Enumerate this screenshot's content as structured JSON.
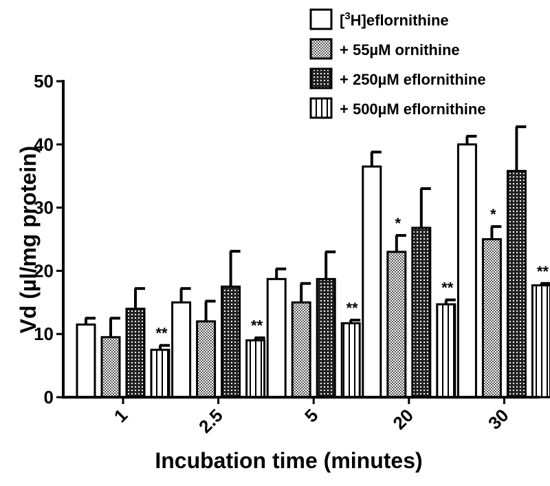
{
  "chart_data": {
    "type": "bar",
    "title": "",
    "xlabel": "Incubation time (minutes)",
    "ylabel": "Vd (µl/mg protein)",
    "ylim": [
      0,
      50
    ],
    "yticks": [
      "0",
      "10",
      "20",
      "30",
      "40",
      "50"
    ],
    "categories": [
      "1",
      "2.5",
      "5",
      "20",
      "30"
    ],
    "legend_position": "top-right",
    "series": [
      {
        "name": "[3H]eflornithine",
        "legend_main": "eflornithine",
        "legend_sup": "3",
        "legend_prefix": "[",
        "legend_mid": "H]",
        "pattern": "white",
        "values": [
          11.5,
          15.0,
          18.7,
          36.5,
          40.0
        ],
        "errors": [
          1.0,
          2.2,
          1.6,
          2.3,
          1.3
        ],
        "significance": [
          "",
          "",
          "",
          "",
          ""
        ]
      },
      {
        "name": "+ 55µM ornithine",
        "pattern": "dots",
        "values": [
          9.5,
          12.0,
          15.0,
          23.0,
          25.0
        ],
        "errors": [
          3.0,
          3.2,
          3.0,
          2.6,
          2.0
        ],
        "significance": [
          "",
          "",
          "",
          "*",
          "*"
        ]
      },
      {
        "name": "+ 250µM eflornithine",
        "pattern": "grid",
        "values": [
          14.0,
          17.5,
          18.7,
          26.8,
          35.8
        ],
        "errors": [
          3.2,
          5.6,
          4.3,
          6.2,
          7.0
        ],
        "significance": [
          "",
          "",
          "",
          "",
          ""
        ]
      },
      {
        "name": "+ 500µM eflornithine",
        "pattern": "stripes",
        "values": [
          7.5,
          9.0,
          11.7,
          14.7,
          17.7
        ],
        "errors": [
          0.7,
          0.4,
          0.5,
          0.7,
          0.3
        ],
        "significance": [
          "**",
          "**",
          "**",
          "**",
          "**"
        ]
      }
    ]
  }
}
